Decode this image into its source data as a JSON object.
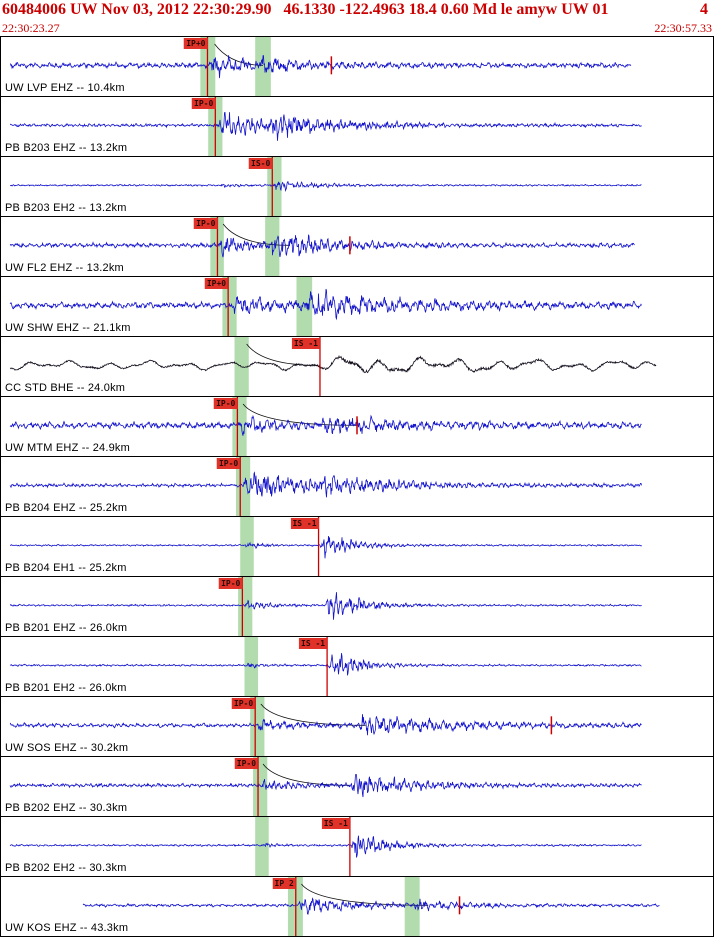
{
  "header": {
    "title": "60484006 UW Nov 03, 2012 22:30:29.90   46.1330 -122.4963 18.4 0.60 Md le amyw UW 01",
    "corner": "4",
    "time_left": "22:30:23.27",
    "time_right": "22:30:57.33",
    "title_color": "#cc0000"
  },
  "colors": {
    "trace_blue": "#1515cc",
    "trace_black": "#15101e",
    "band": "#b2dcae",
    "pick": "#cc0000",
    "flag_bg": "#e03228"
  },
  "traces": [
    {
      "label": "UW LVP EHZ -- 10.4km",
      "pick_label": "IP+0",
      "pick_x": 0.29,
      "bands": [
        [
          0.28,
          0.021
        ],
        [
          0.357,
          0.022
        ]
      ],
      "arc": [
        0.3,
        0.368
      ],
      "coda_x": 0.464,
      "color": "#1515cc",
      "noise": 2.2,
      "freq": 1.05,
      "bursts": [
        [
          0.292,
          9,
          0.05
        ],
        [
          0.36,
          5,
          0.07
        ]
      ],
      "start": 0.012,
      "end": 0.885,
      "seed": 11
    },
    {
      "label": "PB B203 EHZ -- 13.2km",
      "pick_label": "IP-0",
      "pick_x": 0.301,
      "bands": [
        [
          0.291,
          0.02
        ]
      ],
      "color": "#1515cc",
      "noise": 1.3,
      "freq": 1.5,
      "bursts": [
        [
          0.305,
          13,
          0.06
        ],
        [
          0.378,
          8,
          0.1
        ]
      ],
      "start": 0.012,
      "end": 0.9,
      "seed": 12
    },
    {
      "label": "PB B203 EH2 -- 13.2km",
      "pick_label": "IS-0",
      "pick_x": 0.381,
      "bands": [
        [
          0.374,
          0.02
        ]
      ],
      "color": "#1515cc",
      "noise": 0.7,
      "freq": 1.5,
      "bursts": [
        [
          0.306,
          1.5,
          0.03
        ],
        [
          0.382,
          5,
          0.05
        ]
      ],
      "start": 0.012,
      "end": 0.9,
      "seed": 13
    },
    {
      "label": "UW FL2 EHZ -- 13.2km",
      "pick_label": "IP-0",
      "pick_x": 0.304,
      "bands": [
        [
          0.294,
          0.019
        ],
        [
          0.371,
          0.02
        ]
      ],
      "arc": [
        0.312,
        0.405
      ],
      "coda_x": 0.49,
      "color": "#1515cc",
      "noise": 1.9,
      "freq": 1.1,
      "bursts": [
        [
          0.306,
          8,
          0.05
        ],
        [
          0.377,
          11,
          0.08
        ]
      ],
      "start": 0.012,
      "end": 0.89,
      "seed": 14
    },
    {
      "label": "UW SHW EHZ -- 21.1km",
      "pick_label": "IP+0",
      "pick_x": 0.319,
      "bands": [
        [
          0.311,
          0.02
        ],
        [
          0.415,
          0.022
        ]
      ],
      "color": "#1515cc",
      "noise": 2.6,
      "freq": 0.95,
      "bursts": [
        [
          0.322,
          6,
          0.1
        ],
        [
          0.428,
          9,
          0.14
        ]
      ],
      "start": 0.012,
      "end": 0.9,
      "seed": 15
    },
    {
      "label": "CC STD BHE -- 24.0km",
      "pick_label": "IS -1",
      "pick_x": 0.448,
      "bands": [
        [
          0.328,
          0.02
        ]
      ],
      "arc": [
        0.345,
        0.445
      ],
      "color": "#15101e",
      "noise": 5,
      "freq": 0.18,
      "jitter": 0.15,
      "bursts": [
        [
          0.44,
          8,
          0.22,
          0.06
        ]
      ],
      "start": 0.012,
      "end": 0.92,
      "seed": 16
    },
    {
      "label": "UW MTM EHZ -- 24.9km",
      "pick_label": "IP-0",
      "pick_x": 0.332,
      "bands": [
        [
          0.325,
          0.02
        ]
      ],
      "arc": [
        0.34,
        0.5
      ],
      "coda_x": 0.5,
      "color": "#1515cc",
      "noise": 2.7,
      "freq": 1.0,
      "bursts": [
        [
          0.334,
          6,
          0.06
        ],
        [
          0.45,
          6,
          0.12
        ]
      ],
      "start": 0.012,
      "end": 0.9,
      "seed": 17
    },
    {
      "label": "PB B204 EHZ -- 25.2km",
      "pick_label": "IP-0",
      "pick_x": 0.336,
      "bands": [
        [
          0.33,
          0.02
        ]
      ],
      "color": "#1515cc",
      "noise": 1.5,
      "freq": 1.5,
      "bursts": [
        [
          0.34,
          12,
          0.1
        ],
        [
          0.452,
          5,
          0.1
        ]
      ],
      "start": 0.012,
      "end": 0.9,
      "seed": 18
    },
    {
      "label": "PB B204 EH1 -- 25.2km",
      "pick_label": "IS -1",
      "pick_x": 0.446,
      "bands": [
        [
          0.336,
          0.019
        ]
      ],
      "color": "#1515cc",
      "noise": 0.7,
      "freq": 1.5,
      "bursts": [
        [
          0.341,
          2.5,
          0.025
        ],
        [
          0.448,
          13,
          0.04
        ]
      ],
      "start": 0.012,
      "end": 0.9,
      "seed": 19
    },
    {
      "label": "PB B201 EHZ -- 26.0km",
      "pick_label": "IP-0",
      "pick_x": 0.339,
      "bands": [
        [
          0.333,
          0.02
        ]
      ],
      "color": "#1515cc",
      "noise": 0.8,
      "freq": 1.5,
      "bursts": [
        [
          0.342,
          4,
          0.03
        ],
        [
          0.456,
          14,
          0.045
        ]
      ],
      "start": 0.012,
      "end": 0.9,
      "seed": 20
    },
    {
      "label": "PB B201 EH2 -- 26.0km",
      "pick_label": "IS -1",
      "pick_x": 0.458,
      "bands": [
        [
          0.342,
          0.019
        ]
      ],
      "color": "#1515cc",
      "noise": 0.8,
      "freq": 1.5,
      "bursts": [
        [
          0.344,
          2.5,
          0.02
        ],
        [
          0.459,
          14,
          0.04
        ]
      ],
      "start": 0.012,
      "end": 0.9,
      "seed": 21
    },
    {
      "label": "UW SOS EHZ -- 30.2km",
      "pick_label": "IP-0",
      "pick_x": 0.357,
      "bands": [
        [
          0.35,
          0.02
        ]
      ],
      "arc": [
        0.365,
        0.512
      ],
      "coda_x": 0.773,
      "color": "#1515cc",
      "noise": 1.7,
      "freq": 1.05,
      "bursts": [
        [
          0.359,
          4,
          0.05
        ],
        [
          0.5,
          8,
          0.13
        ]
      ],
      "start": 0.012,
      "end": 0.9,
      "seed": 22
    },
    {
      "label": "PB B202 EHZ -- 30.3km",
      "pick_label": "IP-0",
      "pick_x": 0.361,
      "bands": [
        [
          0.354,
          0.02
        ]
      ],
      "arc": [
        0.368,
        0.49
      ],
      "color": "#1515cc",
      "noise": 1.5,
      "freq": 1.45,
      "bursts": [
        [
          0.363,
          5,
          0.05
        ],
        [
          0.492,
          11,
          0.07
        ]
      ],
      "start": 0.012,
      "end": 0.9,
      "seed": 23
    },
    {
      "label": "PB B202 EH2 -- 30.3km",
      "pick_label": "IS -1",
      "pick_x": 0.49,
      "bands": [
        [
          0.357,
          0.019
        ]
      ],
      "color": "#1515cc",
      "noise": 0.8,
      "freq": 1.45,
      "bursts": [
        [
          0.365,
          2,
          0.02
        ],
        [
          0.492,
          12,
          0.045
        ]
      ],
      "start": 0.012,
      "end": 0.9,
      "seed": 24
    },
    {
      "label": "UW KOS EHZ -- 43.3km",
      "pick_label": "IP 2",
      "pick_x": 0.414,
      "bands": [
        [
          0.403,
          0.021
        ],
        [
          0.567,
          0.021
        ]
      ],
      "arc": [
        0.422,
        0.6
      ],
      "coda_x": 0.644,
      "color": "#1515cc",
      "noise": 1.2,
      "freq": 1.1,
      "bursts": [
        [
          0.417,
          7,
          0.08
        ],
        [
          0.58,
          4,
          0.06
        ]
      ],
      "start": 0.115,
      "end": 0.925,
      "seed": 25
    }
  ]
}
